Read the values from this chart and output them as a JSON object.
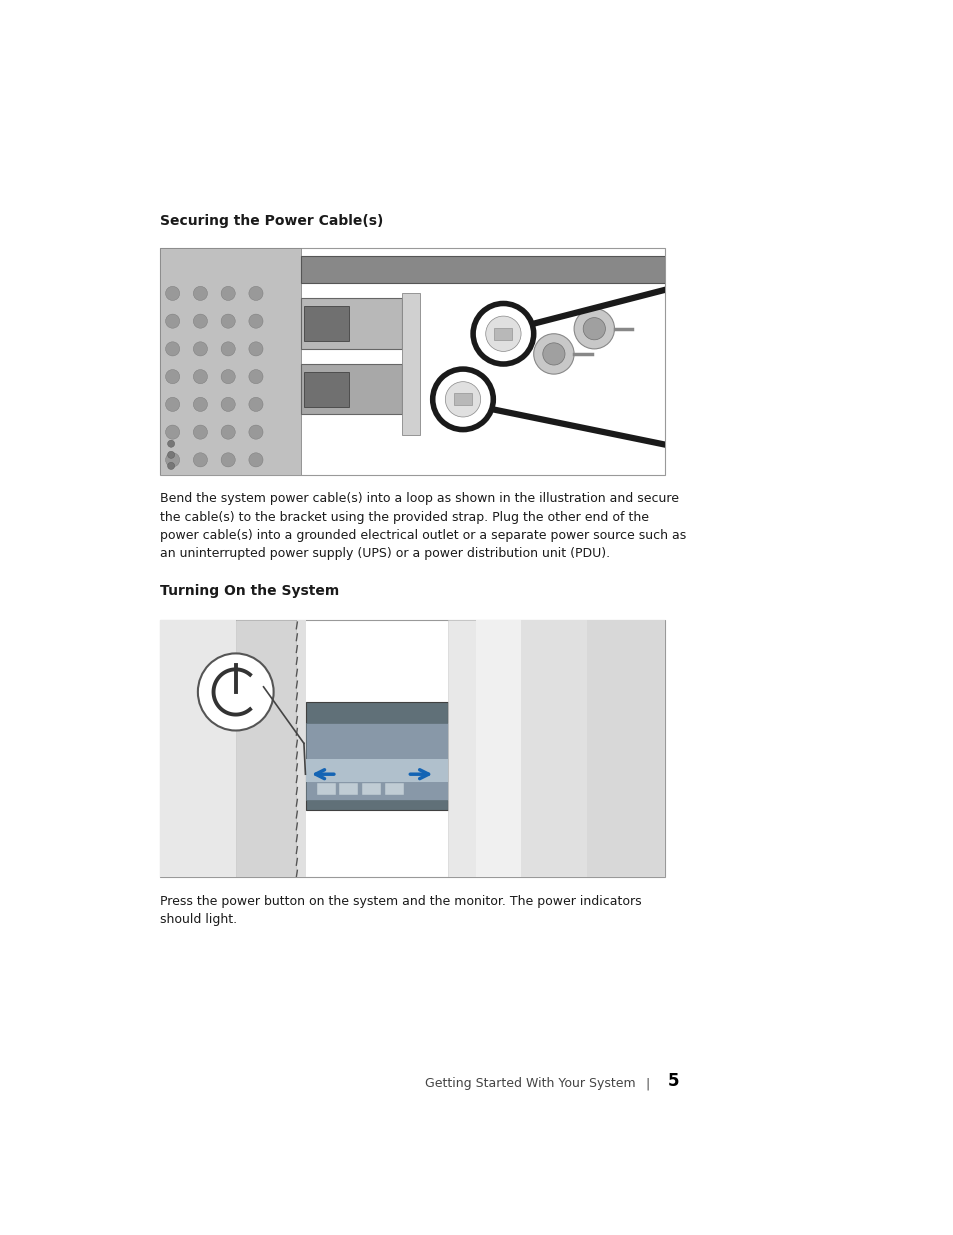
{
  "page_bg": "#ffffff",
  "section1_title": "Securing the Power Cable(s)",
  "section2_title": "Turning On the System",
  "body_text1": "Bend the system power cable(s) into a loop as shown in the illustration and secure\nthe cable(s) to the bracket using the provided strap. Plug the other end of the\npower cable(s) into a grounded electrical outlet or a separate power source such as\nan uninterrupted power supply (UPS) or a power distribution unit (PDU).",
  "body_text2": "Press the power button on the system and the monitor. The power indicators\nshould light.",
  "footer_text": "Getting Started With Your System",
  "footer_separator": "|",
  "footer_page": "5",
  "text_color": "#1a1a1a",
  "border_color": "#999999",
  "title_fontsize": 10.0,
  "body_fontsize": 9.0,
  "footer_fontsize": 9.0
}
